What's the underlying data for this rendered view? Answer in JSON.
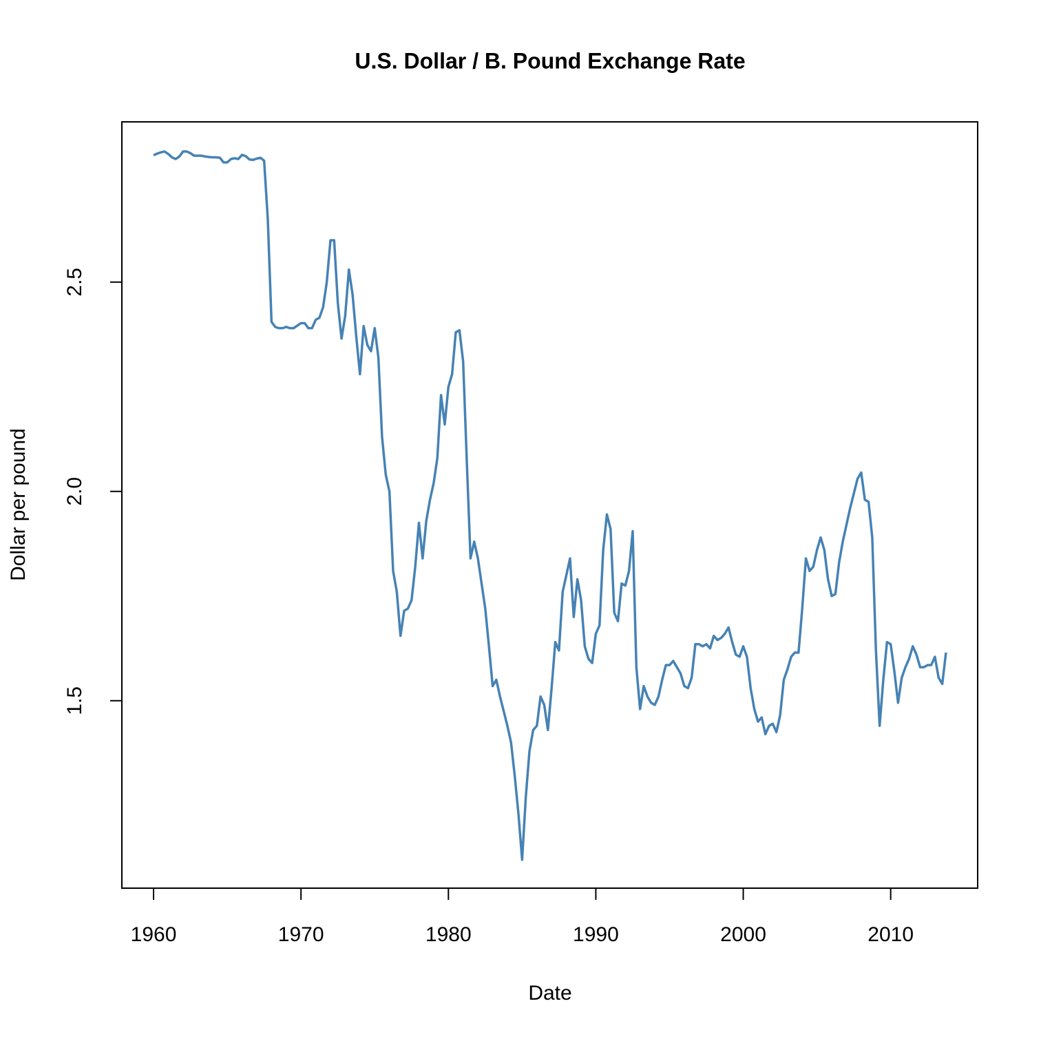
{
  "chart_data": {
    "type": "line",
    "title": "U.S. Dollar / B. Pound Exchange Rate",
    "x_label": "Date",
    "y_label": "Dollar per pound",
    "x": [
      1960,
      1960.25,
      1960.5,
      1960.75,
      1961,
      1961.25,
      1961.5,
      1961.75,
      1962,
      1962.25,
      1962.5,
      1962.75,
      1963,
      1963.25,
      1963.5,
      1963.75,
      1964,
      1964.25,
      1964.5,
      1964.75,
      1965,
      1965.25,
      1965.5,
      1965.75,
      1966,
      1966.25,
      1966.5,
      1966.75,
      1967,
      1967.25,
      1967.5,
      1967.75,
      1968,
      1968.25,
      1968.5,
      1968.75,
      1969,
      1969.25,
      1969.5,
      1969.75,
      1970,
      1970.25,
      1970.5,
      1970.75,
      1971,
      1971.25,
      1971.5,
      1971.75,
      1972,
      1972.25,
      1972.5,
      1972.75,
      1973,
      1973.25,
      1973.5,
      1973.75,
      1974,
      1974.25,
      1974.5,
      1974.75,
      1975,
      1975.25,
      1975.5,
      1975.75,
      1976,
      1976.25,
      1976.5,
      1976.75,
      1977,
      1977.25,
      1977.5,
      1977.75,
      1978,
      1978.25,
      1978.5,
      1978.75,
      1979,
      1979.25,
      1979.5,
      1979.75,
      1980,
      1980.25,
      1980.5,
      1980.75,
      1981,
      1981.25,
      1981.5,
      1981.75,
      1982,
      1982.25,
      1982.5,
      1982.75,
      1983,
      1983.25,
      1983.5,
      1983.75,
      1984,
      1984.25,
      1984.5,
      1984.75,
      1985,
      1985.25,
      1985.5,
      1985.75,
      1986,
      1986.25,
      1986.5,
      1986.75,
      1987,
      1987.25,
      1987.5,
      1987.75,
      1988,
      1988.25,
      1988.5,
      1988.75,
      1989,
      1989.25,
      1989.5,
      1989.75,
      1990,
      1990.25,
      1990.5,
      1990.75,
      1991,
      1991.25,
      1991.5,
      1991.75,
      1992,
      1992.25,
      1992.5,
      1992.75,
      1993,
      1993.25,
      1993.5,
      1993.75,
      1994,
      1994.25,
      1994.5,
      1994.75,
      1995,
      1995.25,
      1995.5,
      1995.75,
      1996,
      1996.25,
      1996.5,
      1996.75,
      1997,
      1997.25,
      1997.5,
      1997.75,
      1998,
      1998.25,
      1998.5,
      1998.75,
      1999,
      1999.25,
      1999.5,
      1999.75,
      2000,
      2000.25,
      2000.5,
      2000.75,
      2001,
      2001.25,
      2001.5,
      2001.75,
      2002,
      2002.25,
      2002.5,
      2002.75,
      2003,
      2003.25,
      2003.5,
      2003.75,
      2004,
      2004.25,
      2004.5,
      2004.75,
      2005,
      2005.25,
      2005.5,
      2005.75,
      2006,
      2006.25,
      2006.5,
      2006.75,
      2007,
      2007.25,
      2007.5,
      2007.75,
      2008,
      2008.25,
      2008.5,
      2008.75,
      2009,
      2009.25,
      2009.5,
      2009.75,
      2010,
      2010.25,
      2010.5,
      2010.75,
      2011,
      2011.25,
      2011.5,
      2011.75,
      2012,
      2012.25,
      2012.5,
      2012.75,
      2013,
      2013.25,
      2013.5,
      2013.75
    ],
    "series": [
      {
        "color": "#4682b4",
        "values": [
          2.803,
          2.807,
          2.81,
          2.812,
          2.806,
          2.798,
          2.794,
          2.8,
          2.812,
          2.812,
          2.808,
          2.802,
          2.802,
          2.802,
          2.8,
          2.799,
          2.798,
          2.798,
          2.797,
          2.786,
          2.786,
          2.794,
          2.796,
          2.794,
          2.804,
          2.801,
          2.793,
          2.792,
          2.795,
          2.797,
          2.79,
          2.65,
          2.405,
          2.393,
          2.39,
          2.39,
          2.393,
          2.39,
          2.39,
          2.396,
          2.402,
          2.402,
          2.39,
          2.39,
          2.41,
          2.415,
          2.44,
          2.5,
          2.6,
          2.6,
          2.45,
          2.365,
          2.42,
          2.53,
          2.47,
          2.37,
          2.28,
          2.395,
          2.35,
          2.335,
          2.39,
          2.32,
          2.13,
          2.04,
          2.0,
          1.81,
          1.76,
          1.655,
          1.715,
          1.72,
          1.74,
          1.82,
          1.925,
          1.84,
          1.93,
          1.98,
          2.02,
          2.08,
          2.23,
          2.16,
          2.25,
          2.28,
          2.38,
          2.385,
          2.31,
          2.07,
          1.84,
          1.88,
          1.84,
          1.78,
          1.72,
          1.63,
          1.535,
          1.55,
          1.51,
          1.475,
          1.44,
          1.4,
          1.32,
          1.23,
          1.12,
          1.27,
          1.38,
          1.43,
          1.44,
          1.51,
          1.49,
          1.43,
          1.53,
          1.64,
          1.62,
          1.76,
          1.8,
          1.84,
          1.7,
          1.79,
          1.74,
          1.63,
          1.6,
          1.59,
          1.66,
          1.68,
          1.86,
          1.945,
          1.91,
          1.71,
          1.69,
          1.78,
          1.775,
          1.81,
          1.905,
          1.58,
          1.48,
          1.535,
          1.51,
          1.495,
          1.49,
          1.51,
          1.55,
          1.585,
          1.585,
          1.595,
          1.58,
          1.565,
          1.535,
          1.53,
          1.555,
          1.635,
          1.635,
          1.63,
          1.635,
          1.625,
          1.655,
          1.645,
          1.65,
          1.66,
          1.675,
          1.64,
          1.61,
          1.605,
          1.63,
          1.605,
          1.53,
          1.48,
          1.45,
          1.46,
          1.42,
          1.44,
          1.445,
          1.425,
          1.465,
          1.55,
          1.575,
          1.605,
          1.615,
          1.615,
          1.72,
          1.84,
          1.81,
          1.82,
          1.86,
          1.89,
          1.86,
          1.79,
          1.75,
          1.755,
          1.83,
          1.88,
          1.92,
          1.96,
          1.995,
          2.03,
          2.045,
          1.98,
          1.975,
          1.89,
          1.62,
          1.44,
          1.55,
          1.64,
          1.635,
          1.57,
          1.495,
          1.555,
          1.58,
          1.6,
          1.63,
          1.61,
          1.58,
          1.58,
          1.585,
          1.585,
          1.605,
          1.555,
          1.54,
          1.615
        ]
      }
    ],
    "xlim": [
      1957.85,
      2015.9
    ],
    "ylim": [
      1.0522,
      2.8828
    ],
    "xticks": [
      1960,
      1970,
      1980,
      1990,
      2000,
      2010
    ],
    "yticks": [
      1.5,
      {
        "value": 2,
        "label": "2.0"
      },
      2.5
    ]
  }
}
